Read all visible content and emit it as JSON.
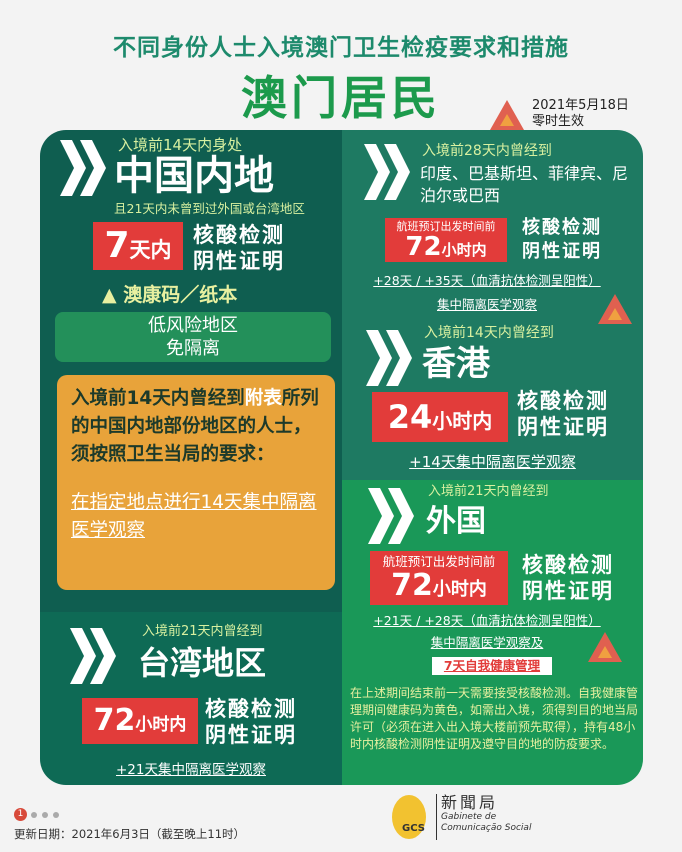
{
  "header": {
    "title": "不同身份人士入境澳门卫生检疫要求和措施",
    "subtitle": "澳门居民",
    "effective_date": "2021年5月18日",
    "effective_note": "零时生效"
  },
  "mainland": {
    "pre": "入境前14天内身处",
    "place": "中国内地",
    "note": "且21天内未曾到过外国或台湾地区",
    "days_num": "7",
    "days_unit": "天内",
    "test1": "核酸检测",
    "test2": "阴性证明",
    "code": "▲ 澳康码／纸本",
    "low1": "低风险地区",
    "low2": "免隔离"
  },
  "risk_area": {
    "text_a": "入境前14天内曾经到",
    "text_link": "附表",
    "text_b": "所列的中国内地部份地区的人士，须按照卫生当局的要求：",
    "action": "在指定地点进行14天集中隔离医学观察"
  },
  "taiwan": {
    "pre": "入境前21天内曾经到",
    "place": "台湾地区",
    "num": "72",
    "unit": "小时内",
    "test1": "核酸检测",
    "test2": "阴性证明",
    "quarantine": "+21天集中隔离医学观察"
  },
  "india": {
    "pre": "入境前28天内曾经到",
    "place": "印度、巴基斯坦、菲律宾、尼泊尔或巴西",
    "flight": "航班预订出发时间前",
    "num": "72",
    "unit": "小时内",
    "test1": "核酸检测",
    "test2": "阴性证明",
    "quarantine": "+28天 / +35天（血清抗体检测呈阳性）",
    "quarantine2": "集中隔离医学观察"
  },
  "hongkong": {
    "pre": "入境前14天内曾经到",
    "place": "香港",
    "num": "24",
    "unit": "小时内",
    "test1": "核酸检测",
    "test2": "阴性证明",
    "quarantine": "+14天集中隔离医学观察"
  },
  "foreign": {
    "pre": "入境前21天内曾经到",
    "place": "外国",
    "flight": "航班预订出发时间前",
    "num": "72",
    "unit": "小时内",
    "test1": "核酸检测",
    "test2": "阴性证明",
    "quarantine": "+21天 / +28天（血清抗体检测呈阳性）",
    "quarantine2": "集中隔离医学观察及",
    "self_mgmt": "7天自我健康管理",
    "note": "在上述期间结束前一天需要接受核酸检测。自我健康管理期间健康码为黄色，如需出入境，须得到目的地当局许可（必须在进入出入境大楼前预先取得），持有48小时内核酸检测阴性证明及遵守目的地的防疫要求。"
  },
  "footer": {
    "page": "1",
    "updated": "更新日期：2021年6月3日（截至晚上11时）",
    "logo_cn": "新聞局",
    "logo_pt1": "Gabinete de",
    "logo_pt2": "Comunicação Social",
    "logo_abbr": "GCS"
  },
  "colors": {
    "dark_teal": "#0f5e50",
    "mid_teal": "#1e7a62",
    "green": "#1a9858",
    "orange": "#e8a33a",
    "red": "#e23c3a"
  }
}
